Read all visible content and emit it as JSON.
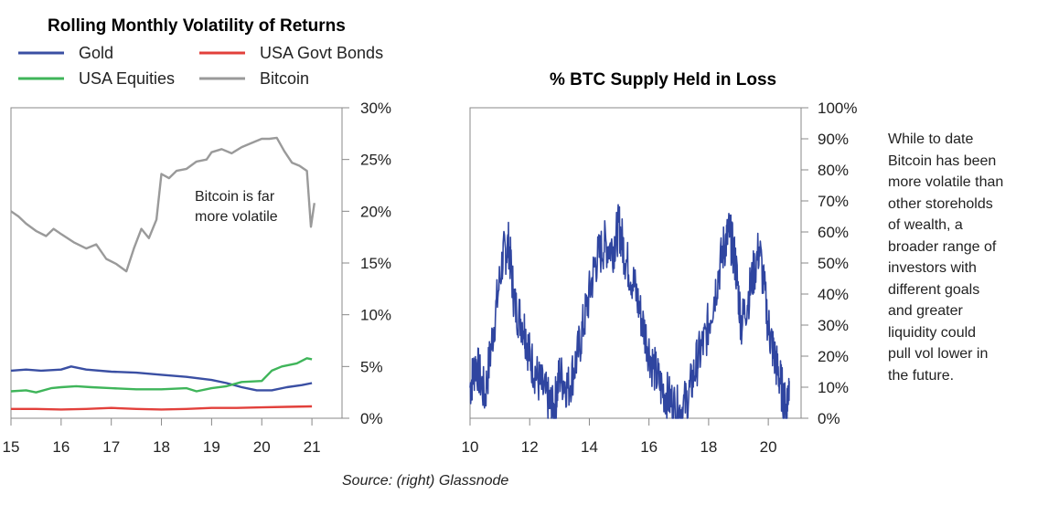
{
  "chart_data": [
    {
      "type": "line",
      "title": "Rolling Monthly Volatility of Returns",
      "xlabel": "",
      "ylabel": "",
      "x_ticks": [
        "15",
        "16",
        "17",
        "18",
        "19",
        "20",
        "21"
      ],
      "y_ticks": [
        "0%",
        "5%",
        "10%",
        "15%",
        "20%",
        "25%",
        "30%"
      ],
      "xlim": [
        15,
        21.6
      ],
      "ylim": [
        0,
        30
      ],
      "grid": false,
      "legend_position": "top-left",
      "annotation": "Bitcoin is far\nmore volatile",
      "series": [
        {
          "name": "Gold",
          "color": "#3a4fa3",
          "x": [
            15.0,
            15.3,
            15.6,
            16.0,
            16.2,
            16.5,
            17.0,
            17.5,
            18.0,
            18.5,
            19.0,
            19.3,
            19.6,
            19.9,
            20.2,
            20.5,
            20.8,
            21.0
          ],
          "y": [
            4.6,
            4.7,
            4.6,
            4.7,
            5.0,
            4.7,
            4.5,
            4.4,
            4.2,
            4.0,
            3.7,
            3.4,
            3.0,
            2.7,
            2.7,
            3.0,
            3.2,
            3.4
          ]
        },
        {
          "name": "USA Govt Bonds",
          "color": "#e2403b",
          "x": [
            15.0,
            15.5,
            16.0,
            16.5,
            17.0,
            17.5,
            18.0,
            18.5,
            19.0,
            19.5,
            20.0,
            20.5,
            21.0
          ],
          "y": [
            0.9,
            0.9,
            0.85,
            0.9,
            1.0,
            0.9,
            0.85,
            0.9,
            1.0,
            1.0,
            1.05,
            1.1,
            1.15
          ]
        },
        {
          "name": "USA Equities",
          "color": "#3fb55a",
          "x": [
            15.0,
            15.3,
            15.5,
            15.8,
            16.0,
            16.3,
            16.6,
            17.0,
            17.5,
            18.0,
            18.5,
            18.7,
            19.0,
            19.3,
            19.6,
            20.0,
            20.2,
            20.4,
            20.7,
            20.9,
            21.0
          ],
          "y": [
            2.6,
            2.7,
            2.5,
            2.9,
            3.0,
            3.1,
            3.0,
            2.9,
            2.8,
            2.8,
            2.9,
            2.6,
            2.9,
            3.1,
            3.5,
            3.6,
            4.6,
            5.0,
            5.3,
            5.8,
            5.7
          ]
        },
        {
          "name": "Bitcoin",
          "color": "#9a9a9a",
          "x": [
            15.0,
            15.15,
            15.3,
            15.5,
            15.7,
            15.85,
            16.0,
            16.25,
            16.5,
            16.7,
            16.9,
            17.1,
            17.3,
            17.45,
            17.6,
            17.75,
            17.9,
            18.0,
            18.15,
            18.3,
            18.5,
            18.7,
            18.9,
            19.0,
            19.2,
            19.4,
            19.6,
            19.8,
            20.0,
            20.15,
            20.3,
            20.45,
            20.6,
            20.75,
            20.9,
            20.98,
            21.05
          ],
          "y": [
            20.0,
            19.5,
            18.8,
            18.1,
            17.6,
            18.3,
            17.8,
            17.0,
            16.4,
            16.8,
            15.4,
            14.9,
            14.2,
            16.4,
            18.3,
            17.4,
            19.2,
            23.6,
            23.2,
            23.9,
            24.1,
            24.8,
            25.0,
            25.7,
            26.0,
            25.6,
            26.2,
            26.6,
            27.0,
            27.0,
            27.1,
            25.8,
            24.7,
            24.4,
            23.9,
            18.5,
            20.8
          ]
        }
      ]
    },
    {
      "type": "line",
      "title": "% BTC Supply Held in Loss",
      "xlabel": "",
      "ylabel": "",
      "x_ticks": [
        "10",
        "12",
        "14",
        "16",
        "18",
        "20"
      ],
      "y_ticks": [
        "0%",
        "10%",
        "20%",
        "30%",
        "40%",
        "50%",
        "60%",
        "70%",
        "80%",
        "90%",
        "100%"
      ],
      "xlim": [
        10,
        21.1
      ],
      "ylim": [
        0,
        100
      ],
      "grid": false,
      "series": [
        {
          "color": "#2f45a0",
          "x": [
            10.0,
            10.2,
            10.5,
            10.8,
            11.1,
            11.3,
            11.5,
            11.8,
            12.0,
            12.3,
            12.6,
            12.8,
            13.0,
            13.3,
            13.6,
            13.9,
            14.2,
            14.5,
            14.8,
            15.0,
            15.2,
            15.5,
            15.8,
            16.1,
            16.4,
            16.7,
            17.0,
            17.3,
            17.6,
            17.9,
            18.2,
            18.5,
            18.7,
            18.9,
            19.1,
            19.4,
            19.7,
            20.0,
            20.2,
            20.4,
            20.6,
            20.7
          ],
          "y": [
            10,
            18,
            7,
            30,
            52,
            56,
            36,
            30,
            20,
            12,
            6,
            2,
            14,
            10,
            20,
            35,
            50,
            56,
            55,
            62,
            52,
            43,
            30,
            18,
            10,
            6,
            2,
            6,
            18,
            26,
            40,
            55,
            60,
            50,
            30,
            42,
            55,
            30,
            20,
            12,
            2,
            12
          ]
        }
      ]
    }
  ],
  "legend_items": [
    {
      "label": "Gold",
      "color": "#3a4fa3"
    },
    {
      "label": "USA Govt Bonds",
      "color": "#e2403b"
    },
    {
      "label": "USA Equities",
      "color": "#3fb55a"
    },
    {
      "label": "Bitcoin",
      "color": "#9a9a9a"
    }
  ],
  "side_note": "While to date\nBitcoin has been\nmore volatile than\nother storeholds\nof wealth, a\nbroader range of\ninvestors with\ndifferent goals\nand greater\nliquidity could\npull vol lower in\n the future.",
  "source": "Source: (right) Glassnode"
}
